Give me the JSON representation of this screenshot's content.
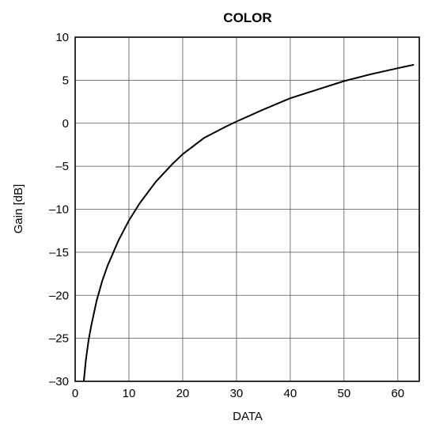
{
  "chart_data": {
    "type": "line",
    "title": "COLOR",
    "xlabel": "DATA",
    "ylabel": "Gain [dB]",
    "xlim": [
      0,
      64
    ],
    "ylim": [
      -30,
      10
    ],
    "xticks": [
      0,
      10,
      20,
      30,
      40,
      50,
      60
    ],
    "yticks": [
      10,
      5,
      0,
      -5,
      -10,
      -15,
      -20,
      -25,
      -30
    ],
    "xtick_labels": [
      "0",
      "10",
      "20",
      "30",
      "40",
      "50",
      "60"
    ],
    "ytick_labels": [
      "10",
      "5",
      "0",
      "–5",
      "–10",
      "–15",
      "–20",
      "–25",
      "–30"
    ],
    "grid": true,
    "series": [
      {
        "x": [
          1.6,
          2.0,
          2.5,
          3,
          4,
          5,
          6,
          8,
          10,
          12,
          15,
          18,
          20,
          24,
          28,
          30,
          35,
          40,
          45,
          50,
          55,
          60,
          63
        ],
        "y": [
          -30,
          -27.5,
          -25.2,
          -23.5,
          -20.6,
          -18.4,
          -16.6,
          -13.7,
          -11.3,
          -9.3,
          -6.8,
          -4.8,
          -3.6,
          -1.7,
          -0.4,
          0.2,
          1.6,
          2.9,
          3.9,
          4.9,
          5.7,
          6.4,
          6.8
        ]
      }
    ]
  }
}
